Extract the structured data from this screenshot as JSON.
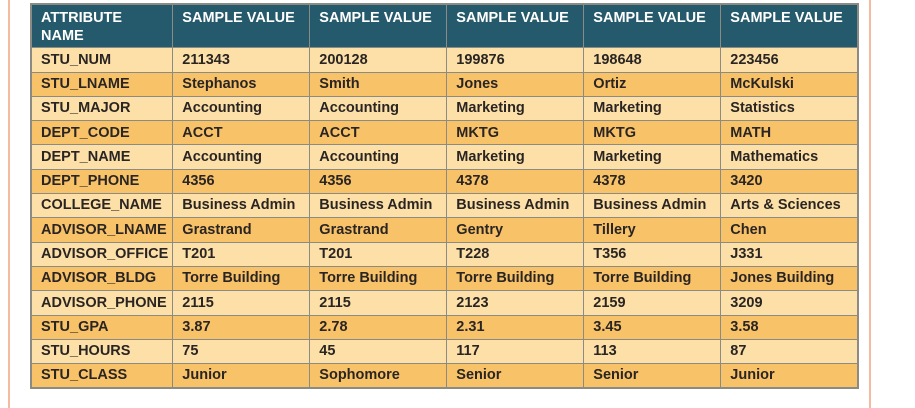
{
  "table": {
    "header": [
      "ATTRIBUTE NAME",
      "SAMPLE VALUE",
      "SAMPLE VALUE",
      "SAMPLE VALUE",
      "SAMPLE VALUE",
      "SAMPLE VALUE"
    ],
    "rows": [
      {
        "attribute": "STU_NUM",
        "values": [
          "211343",
          "200128",
          "199876",
          "198648",
          "223456"
        ]
      },
      {
        "attribute": "STU_LNAME",
        "values": [
          "Stephanos",
          "Smith",
          "Jones",
          "Ortiz",
          "McKulski"
        ]
      },
      {
        "attribute": "STU_MAJOR",
        "values": [
          "Accounting",
          "Accounting",
          "Marketing",
          "Marketing",
          "Statistics"
        ]
      },
      {
        "attribute": "DEPT_CODE",
        "values": [
          "ACCT",
          "ACCT",
          "MKTG",
          "MKTG",
          "MATH"
        ]
      },
      {
        "attribute": "DEPT_NAME",
        "values": [
          "Accounting",
          "Accounting",
          "Marketing",
          "Marketing",
          "Mathematics"
        ]
      },
      {
        "attribute": "DEPT_PHONE",
        "values": [
          "4356",
          "4356",
          "4378",
          "4378",
          "3420"
        ]
      },
      {
        "attribute": "COLLEGE_NAME",
        "values": [
          "Business Admin",
          "Business Admin",
          "Business Admin",
          "Business Admin",
          "Arts & Sciences"
        ]
      },
      {
        "attribute": "ADVISOR_LNAME",
        "values": [
          "Grastrand",
          "Grastrand",
          "Gentry",
          "Tillery",
          "Chen"
        ]
      },
      {
        "attribute": "ADVISOR_OFFICE",
        "values": [
          "T201",
          "T201",
          "T228",
          "T356",
          "J331"
        ]
      },
      {
        "attribute": "ADVISOR_BLDG",
        "values": [
          "Torre Building",
          "Torre Building",
          "Torre Building",
          "Torre Building",
          "Jones Building"
        ]
      },
      {
        "attribute": "ADVISOR_PHONE",
        "values": [
          "2115",
          "2115",
          "2123",
          "2159",
          "3209"
        ]
      },
      {
        "attribute": "STU_GPA",
        "values": [
          "3.87",
          "2.78",
          "2.31",
          "3.45",
          "3.58"
        ]
      },
      {
        "attribute": "STU_HOURS",
        "values": [
          "75",
          "45",
          "117",
          "113",
          "87"
        ]
      },
      {
        "attribute": "STU_CLASS",
        "values": [
          "Junior",
          "Sophomore",
          "Senior",
          "Senior",
          "Junior"
        ]
      }
    ]
  },
  "colors": {
    "header_bg": "#255a6c",
    "header_text": "#ffffff",
    "row_light": "#fce0a8",
    "row_dark": "#f8c269",
    "grid": "#8b8b83",
    "cell_text": "#2a2523",
    "margin_line": "#f4bba1",
    "page_bg": "#ffffff"
  }
}
